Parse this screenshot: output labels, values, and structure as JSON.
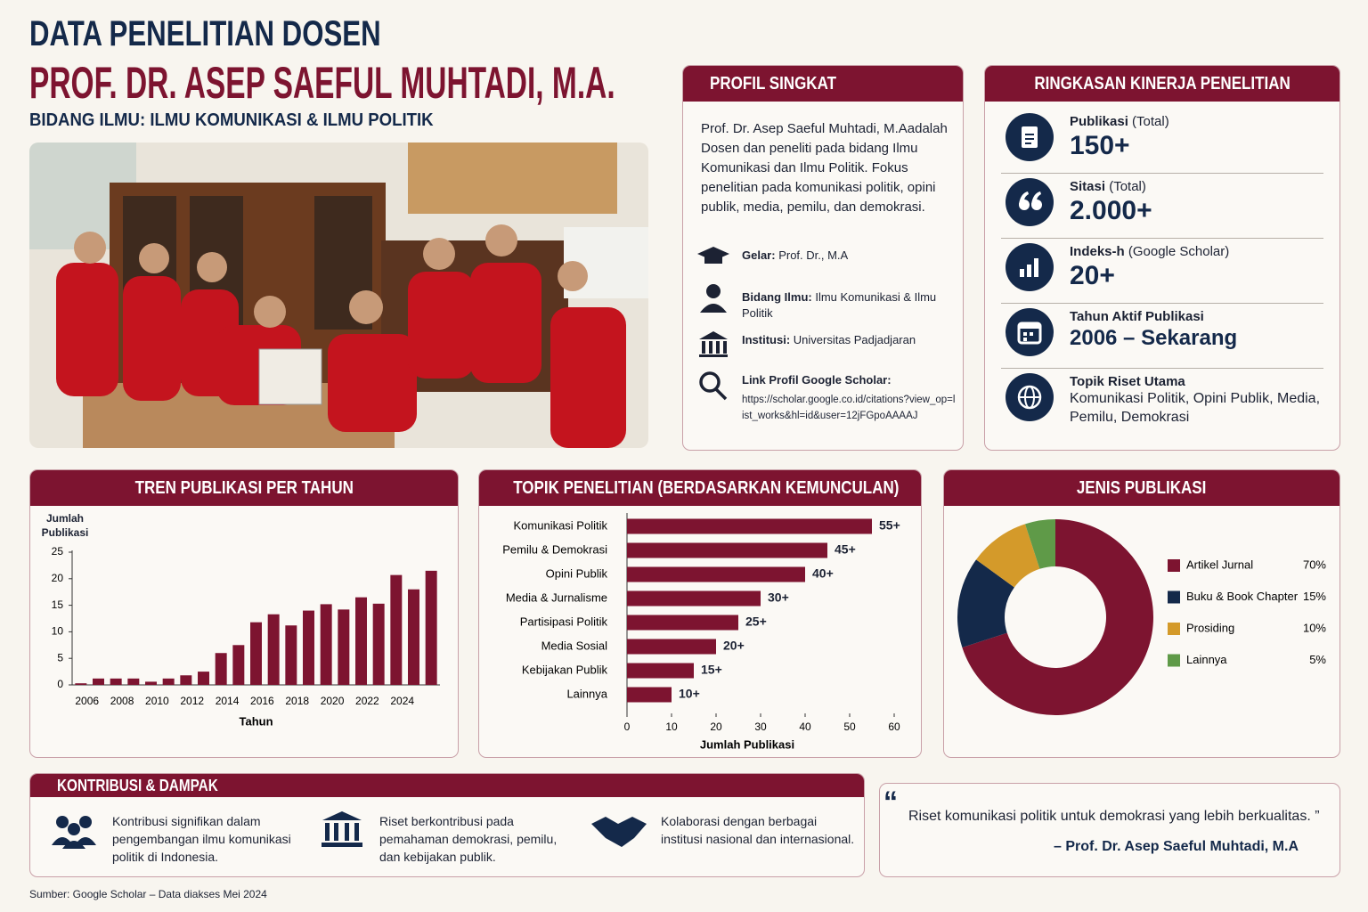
{
  "header": {
    "kicker": "DATA PENELITIAN DOSEN",
    "name": "PROF. DR. ASEP SAEFUL MUHTADI, M.A.",
    "field": "BIDANG ILMU: ILMU KOMUNIKASI & ILMU POLITIK"
  },
  "profile": {
    "title": "PROFIL SINGKAT",
    "description": "Prof. Dr. Asep Saeful Muhtadi, M.Aadalah Dosen dan peneliti pada bidang Ilmu Komunikasi dan Ilmu Politik. Fokus penelitian pada komunikasi politik, opini publik, media, pemilu, dan demokrasi.",
    "items": [
      {
        "label": "Gelar:",
        "value": "Prof. Dr., M.A"
      },
      {
        "label": "Bidang Ilmu:",
        "value": "Ilmu Komunikasi & Ilmu Politik"
      },
      {
        "label": "Institusi:",
        "value": "Universitas Padjadjaran"
      },
      {
        "label": "Link Profil Google Scholar:",
        "value": "https://scholar.google.co.id/citations?view_op=list_works&hl=id&user=12jFGpoAAAAJ"
      }
    ]
  },
  "summary": {
    "title": "RINGKASAN KINERJA PENELITIAN",
    "items": [
      {
        "label": "Publikasi",
        "note": "(Total)",
        "value": "150+"
      },
      {
        "label": "Sitasi",
        "note": "(Total)",
        "value": "2.000+"
      },
      {
        "label": "Indeks-h",
        "note": "(Google Scholar)",
        "value": "20+"
      },
      {
        "label": "Tahun Aktif Publikasi",
        "value": "2006 – Sekarang"
      },
      {
        "label": "Topik Riset Utama",
        "value": "Komunikasi Politik, Opini Publik, Media, Pemilu, Demokrasi"
      }
    ]
  },
  "chart_data": [
    {
      "type": "bar",
      "title": "TREN PUBLIKASI PER TAHUN",
      "xlabel": "Tahun",
      "ylabel": "Jumlah Publikasi",
      "categories": [
        "2006",
        null,
        "2008",
        null,
        "2010",
        null,
        "2012",
        null,
        "2014",
        null,
        "2016",
        null,
        "2018",
        null,
        "2020",
        null,
        "2022",
        null,
        "2024",
        null,
        null
      ],
      "values": [
        0.3,
        1.2,
        1.2,
        1.2,
        0.6,
        1.2,
        1.8,
        2.5,
        6,
        7.5,
        11.8,
        13.3,
        11.2,
        14,
        15.2,
        14.2,
        16.5,
        15.3,
        20.7,
        18,
        21.5
      ],
      "color": "#7d1430",
      "ylim": [
        0,
        25
      ],
      "yticks": [
        0,
        5,
        10,
        15,
        20,
        25
      ],
      "grid": false
    },
    {
      "type": "barh",
      "title": "TOPIK PENELITIAN (BERDASARKAN KEMUNCULAN)",
      "xlabel": "Jumlah Publikasi",
      "categories": [
        "Komunikasi Politik",
        "Pemilu & Demokrasi",
        "Opini Publik",
        "Media & Jurnalisme",
        "Partisipasi Politik",
        "Media Sosial",
        "Kebijakan Publik",
        "Lainnya"
      ],
      "values": [
        55,
        45,
        40,
        30,
        25,
        20,
        15,
        10
      ],
      "value_labels": [
        "55+",
        "45+",
        "40+",
        "30+",
        "25+",
        "20+",
        "15+",
        "10+"
      ],
      "color": "#7d1430",
      "xlim": [
        0,
        60
      ],
      "xticks": [
        0,
        10,
        20,
        30,
        40,
        50,
        60
      ],
      "grid": false
    },
    {
      "type": "pie",
      "donut": true,
      "title": "JENIS PUBLIKASI",
      "categories": [
        "Artikel Jurnal",
        "Buku & Book Chapter",
        "Prosiding",
        "Lainnya"
      ],
      "values": [
        70,
        15,
        10,
        5
      ],
      "value_labels": [
        "70%",
        "15%",
        "10%",
        "5%"
      ],
      "colors": [
        "#7d1430",
        "#14294a",
        "#d49a2a",
        "#5f9a48"
      ],
      "legend": "right"
    }
  ],
  "contributions": {
    "title": "KONTRIBUSI & DAMPAK",
    "items": [
      "Kontribusi signifikan dalam pengembangan ilmu komunikasi politik di Indonesia.",
      "Riset berkontribusi pada pemahaman demokrasi, pemilu, dan kebijakan publik.",
      "Kolaborasi dengan berbagai institusi nasional dan internasional."
    ]
  },
  "quote": {
    "mark": "“",
    "text": "Riset komunikasi politik untuk demokrasi yang lebih berkualitas. ”",
    "author": "– Prof. Dr. Asep Saeful Muhtadi, M.A"
  },
  "source": "Sumber: Google Scholar – Data diakses Mei 2024"
}
